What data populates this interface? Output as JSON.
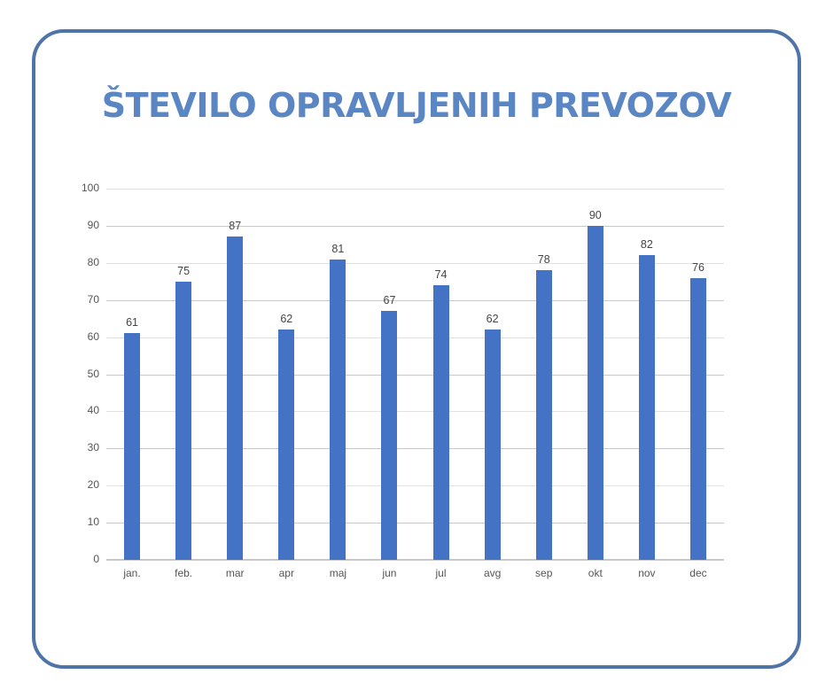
{
  "title": "ŠTEVILO OPRAVLJENIH PREVOZOV",
  "colors": {
    "bar": "#4472c4",
    "title": "#5a86c3",
    "frame": "#4f74a8"
  },
  "chart_data": {
    "type": "bar",
    "title": "ŠTEVILO OPRAVLJENIH PREVOZOV",
    "categories": [
      "jan.",
      "feb.",
      "mar",
      "apr",
      "maj",
      "jun",
      "jul",
      "avg",
      "sep",
      "okt",
      "nov",
      "dec"
    ],
    "values": [
      61,
      75,
      87,
      62,
      81,
      67,
      74,
      62,
      78,
      90,
      82,
      76
    ],
    "xlabel": "",
    "ylabel": "",
    "ylim": [
      0,
      100
    ],
    "yticks": [
      "0",
      "10",
      "20",
      "30",
      "40",
      "50",
      "60",
      "70",
      "80",
      "90",
      "100"
    ],
    "grid": true,
    "data_labels": true,
    "legend": "none"
  }
}
